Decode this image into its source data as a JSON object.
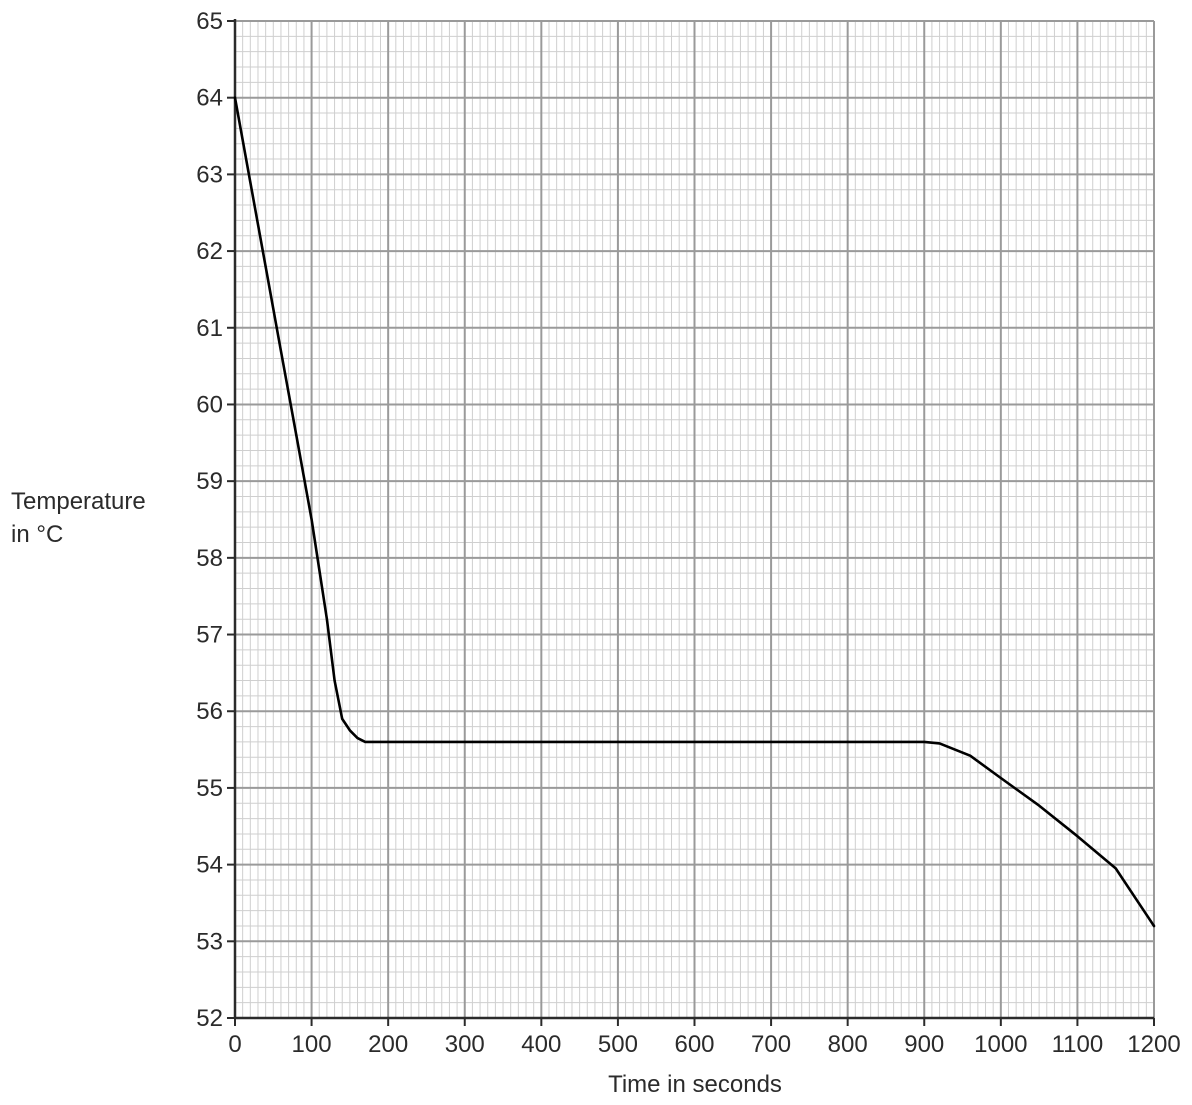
{
  "chart_data": {
    "type": "line",
    "title": "",
    "xlabel": "Time in seconds",
    "ylabel_lines": [
      "Temperature",
      "in °C"
    ],
    "xlim": [
      0,
      1200
    ],
    "ylim": [
      52,
      65
    ],
    "x_ticks": [
      0,
      100,
      200,
      300,
      400,
      500,
      600,
      700,
      800,
      900,
      1000,
      1100,
      1200
    ],
    "y_ticks": [
      52,
      53,
      54,
      55,
      56,
      57,
      58,
      59,
      60,
      61,
      62,
      63,
      64,
      65
    ],
    "grid": true,
    "minor_grid_per_major_x": 10,
    "minor_grid_per_major_y": 5,
    "series": [
      {
        "x": [
          0,
          20,
          40,
          60,
          80,
          100,
          120,
          130,
          140,
          150,
          160,
          170,
          200,
          300,
          400,
          500,
          600,
          700,
          800,
          900,
          920,
          940,
          960,
          1000,
          1050,
          1100,
          1150,
          1200
        ],
        "y": [
          64.0,
          62.9,
          61.8,
          60.7,
          59.6,
          58.5,
          57.2,
          56.4,
          55.9,
          55.75,
          55.65,
          55.6,
          55.6,
          55.6,
          55.6,
          55.6,
          55.6,
          55.6,
          55.6,
          55.6,
          55.58,
          55.5,
          55.42,
          55.13,
          54.77,
          54.37,
          53.95,
          53.2
        ]
      }
    ],
    "colors": {
      "line": "#000000",
      "major_grid": "#9a9a9a",
      "minor_grid": "#cfcfcf",
      "axis": "#2b2b2b",
      "text": "#2b2b2b"
    }
  }
}
